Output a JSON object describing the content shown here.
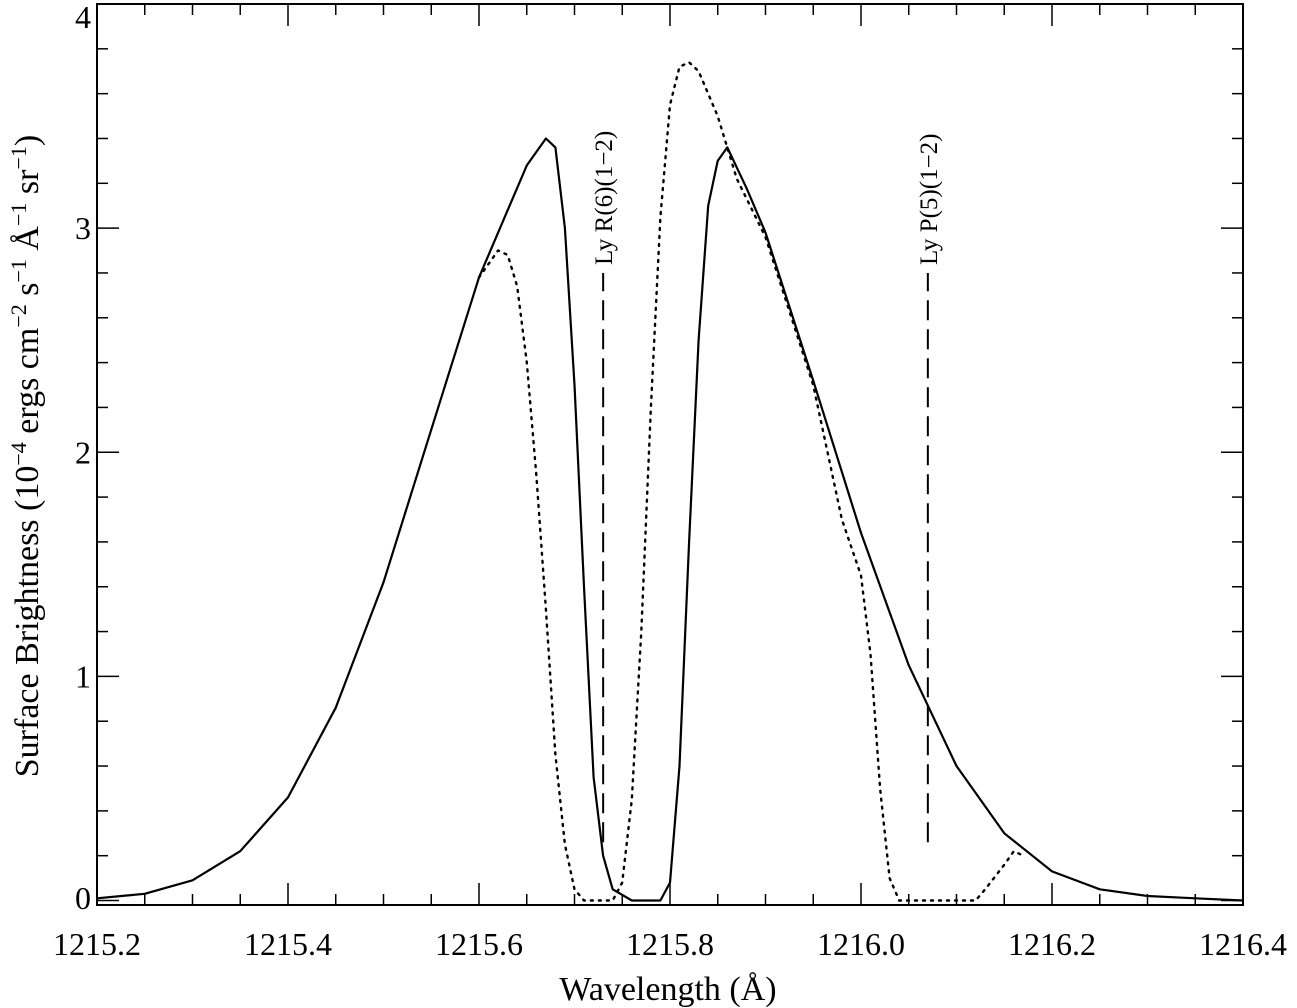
{
  "chart_data": {
    "type": "line",
    "xlabel": "Wavelength (Å)",
    "ylabel": {
      "parts": [
        {
          "t": "Surface Brightness (10"
        },
        {
          "t": "−4",
          "sup": true
        },
        {
          "t": " ergs cm"
        },
        {
          "t": "−2",
          "sup": true
        },
        {
          "t": " s"
        },
        {
          "t": "−1",
          "sup": true
        },
        {
          "t": " Å"
        },
        {
          "t": "−1",
          "sup": true
        },
        {
          "t": " sr"
        },
        {
          "t": "−1",
          "sup": true
        },
        {
          "t": ")"
        }
      ]
    },
    "xlim": [
      1215.2,
      1216.4
    ],
    "ylim": [
      -0.02,
      4.0
    ],
    "xticks": [
      {
        "value": 1215.2,
        "label": "1215.2"
      },
      {
        "value": 1215.4,
        "label": "1215.4"
      },
      {
        "value": 1215.6,
        "label": "1215.6"
      },
      {
        "value": 1215.8,
        "label": "1215.8"
      },
      {
        "value": 1216.0,
        "label": "1216.0"
      },
      {
        "value": 1216.2,
        "label": "1216.2"
      },
      {
        "value": 1216.4,
        "label": "1216.4"
      }
    ],
    "yticks": [
      {
        "value": 0,
        "label": "0"
      },
      {
        "value": 1,
        "label": "1"
      },
      {
        "value": 2,
        "label": "2"
      },
      {
        "value": 3,
        "label": "3"
      },
      {
        "value": 4,
        "label": "4"
      }
    ],
    "grid": false,
    "series": [
      {
        "style": "solid",
        "points": [
          [
            1215.2,
            0.01
          ],
          [
            1215.25,
            0.03
          ],
          [
            1215.3,
            0.09
          ],
          [
            1215.35,
            0.22
          ],
          [
            1215.4,
            0.46
          ],
          [
            1215.45,
            0.86
          ],
          [
            1215.5,
            1.42
          ],
          [
            1215.55,
            2.1
          ],
          [
            1215.6,
            2.78
          ],
          [
            1215.65,
            3.28
          ],
          [
            1215.67,
            3.4
          ],
          [
            1215.68,
            3.36
          ],
          [
            1215.69,
            3.0
          ],
          [
            1215.7,
            2.3
          ],
          [
            1215.71,
            1.4
          ],
          [
            1215.72,
            0.55
          ],
          [
            1215.73,
            0.2
          ],
          [
            1215.74,
            0.05
          ],
          [
            1215.76,
            0.0
          ],
          [
            1215.79,
            0.0
          ],
          [
            1215.8,
            0.08
          ],
          [
            1215.81,
            0.6
          ],
          [
            1215.82,
            1.6
          ],
          [
            1215.83,
            2.5
          ],
          [
            1215.84,
            3.1
          ],
          [
            1215.85,
            3.3
          ],
          [
            1215.86,
            3.36
          ],
          [
            1215.88,
            3.18
          ],
          [
            1215.9,
            2.98
          ],
          [
            1215.95,
            2.32
          ],
          [
            1216.0,
            1.64
          ],
          [
            1216.05,
            1.05
          ],
          [
            1216.1,
            0.6
          ],
          [
            1216.15,
            0.3
          ],
          [
            1216.2,
            0.13
          ],
          [
            1216.25,
            0.05
          ],
          [
            1216.3,
            0.02
          ],
          [
            1216.35,
            0.01
          ],
          [
            1216.4,
            0.0
          ]
        ]
      },
      {
        "style": "dotted",
        "points": [
          [
            1215.6,
            2.78
          ],
          [
            1215.62,
            2.9
          ],
          [
            1215.63,
            2.88
          ],
          [
            1215.64,
            2.74
          ],
          [
            1215.65,
            2.4
          ],
          [
            1215.66,
            1.9
          ],
          [
            1215.67,
            1.3
          ],
          [
            1215.68,
            0.65
          ],
          [
            1215.69,
            0.25
          ],
          [
            1215.7,
            0.05
          ],
          [
            1215.71,
            0.0
          ],
          [
            1215.74,
            0.0
          ],
          [
            1215.75,
            0.08
          ],
          [
            1215.76,
            0.45
          ],
          [
            1215.77,
            1.2
          ],
          [
            1215.78,
            2.2
          ],
          [
            1215.79,
            3.05
          ],
          [
            1215.8,
            3.55
          ],
          [
            1215.81,
            3.72
          ],
          [
            1215.82,
            3.74
          ],
          [
            1215.83,
            3.7
          ],
          [
            1215.85,
            3.5
          ],
          [
            1215.87,
            3.22
          ],
          [
            1215.9,
            2.96
          ],
          [
            1215.95,
            2.3
          ],
          [
            1215.98,
            1.7
          ],
          [
            1216.0,
            1.45
          ],
          [
            1216.01,
            1.1
          ],
          [
            1216.02,
            0.5
          ],
          [
            1216.03,
            0.1
          ],
          [
            1216.04,
            0.0
          ],
          [
            1216.12,
            0.0
          ],
          [
            1216.13,
            0.05
          ],
          [
            1216.15,
            0.16
          ],
          [
            1216.16,
            0.22
          ],
          [
            1216.17,
            0.2
          ]
        ]
      }
    ],
    "annotations": [
      {
        "label": "Ly R(6)(1−2)",
        "x": 1215.73,
        "y_from": 0.26,
        "y_to": 2.8
      },
      {
        "label": "Ly P(5)(1−2)",
        "x": 1216.07,
        "y_from": 0.26,
        "y_to": 2.8
      }
    ]
  }
}
